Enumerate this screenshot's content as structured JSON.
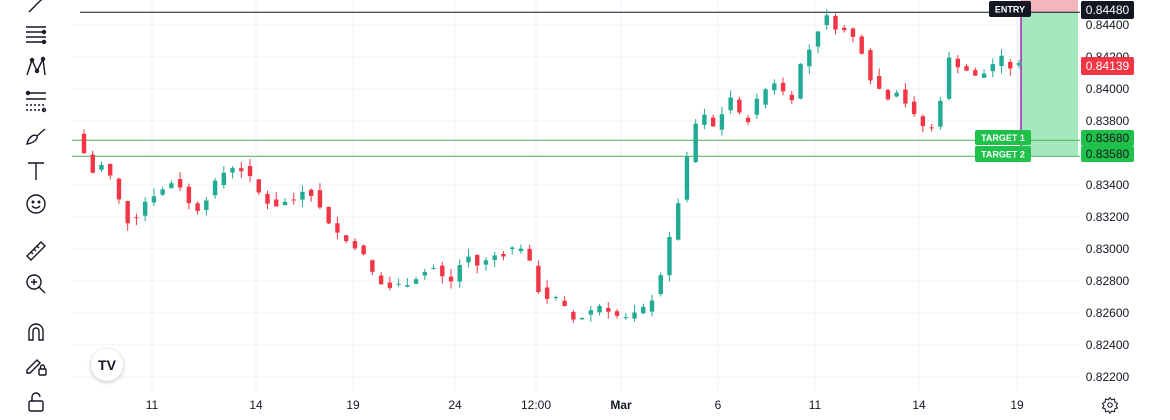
{
  "colors": {
    "up": "#22ab94",
    "down": "#f23645",
    "grid": "#f0f3fa",
    "target_line": "#4caf50",
    "target_fill": "#a3e8bf",
    "stop_fill": "#f5b5bd",
    "entry_line": "#131722",
    "purple": "#9c27b0",
    "target_badge": "#1fc14a",
    "current_price_bg": "#f23645"
  },
  "toolbar": {
    "tools": [
      {
        "name": "cursor-tool-icon"
      },
      {
        "name": "lines-tool-icon"
      },
      {
        "name": "pattern-tool-icon"
      },
      {
        "name": "fib-tool-icon"
      },
      {
        "name": "brush-tool-icon"
      },
      {
        "name": "text-tool-icon"
      },
      {
        "name": "emoji-tool-icon"
      },
      {
        "name": "ruler-tool-icon"
      },
      {
        "name": "zoom-in-icon"
      },
      {
        "name": "magnet-icon"
      },
      {
        "name": "lock-drawing-icon"
      },
      {
        "name": "lock-icon"
      }
    ]
  },
  "logo": {
    "text": "TV"
  },
  "chart_data": {
    "type": "candlestick",
    "y_ticks": [
      "0.84400",
      "0.84200",
      "0.84000",
      "0.83800",
      "0.83600",
      "0.83400",
      "0.83200",
      "0.83000",
      "0.82800",
      "0.82600",
      "0.82400",
      "0.82200"
    ],
    "x_ticks": [
      "11",
      "14",
      "19",
      "24",
      "12:00",
      "Mar",
      "6",
      "11",
      "14",
      "19"
    ],
    "ylim": [
      0.8205,
      0.8451
    ],
    "entry": {
      "label": "ENTRY",
      "price": "0.84480",
      "value": 0.8448
    },
    "target1": {
      "label": "TARGET 1",
      "price": "0.83680",
      "value": 0.8368
    },
    "target2": {
      "label": "TARGET 2",
      "price": "0.83580",
      "value": 0.8358
    },
    "current_price": {
      "price": "0.84139",
      "value": 0.84139
    },
    "trend": [
      0.836,
      0.8348,
      0.8352,
      0.8345,
      0.833,
      0.8318,
      0.8322,
      0.833,
      0.8335,
      0.8337,
      0.8342,
      0.834,
      0.8328,
      0.8326,
      0.8333,
      0.834,
      0.8348,
      0.8352,
      0.835,
      0.8343,
      0.8335,
      0.833,
      0.8328,
      0.8329,
      0.8331,
      0.8338,
      0.8336,
      0.8325,
      0.8318,
      0.831,
      0.8305,
      0.8303,
      0.8295,
      0.8285,
      0.8278,
      0.8276,
      0.8277,
      0.828,
      0.8283,
      0.8286,
      0.8288,
      0.8282,
      0.828,
      0.829,
      0.8295,
      0.829,
      0.8292,
      0.8296,
      0.8298,
      0.83,
      0.8302,
      0.829,
      0.8275,
      0.827,
      0.8268,
      0.8262,
      0.8256,
      0.8258,
      0.8262,
      0.8265,
      0.8263,
      0.8258,
      0.8256,
      0.8258,
      0.8262,
      0.827,
      0.8285,
      0.8305,
      0.833,
      0.8355,
      0.8378,
      0.8382,
      0.8376,
      0.8385,
      0.8395,
      0.8383,
      0.8382,
      0.8392,
      0.84,
      0.8405,
      0.8398,
      0.8396,
      0.8415,
      0.8425,
      0.8438,
      0.8444,
      0.844,
      0.8436,
      0.8432,
      0.8425,
      0.8408,
      0.84,
      0.8396,
      0.84,
      0.8392,
      0.8382,
      0.8377,
      0.8375,
      0.8395,
      0.8418,
      0.8416,
      0.8412,
      0.8407,
      0.841,
      0.8416,
      0.8418,
      0.8414,
      0.8414
    ]
  }
}
